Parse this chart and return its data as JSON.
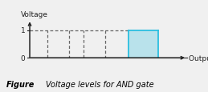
{
  "title_y": "Voltage",
  "title_x": "Output Y",
  "caption_bold": "Figure",
  "caption_italic": "     Voltage levels for AND gate",
  "bg_color": "#f0f0f0",
  "plot_bg": "#ffffff",
  "dashed_pulses": [
    {
      "x_start": 1.0,
      "x_end": 2.2,
      "y": 1
    },
    {
      "x_start": 3.0,
      "x_end": 4.2,
      "y": 1
    }
  ],
  "solid_pulse": {
    "x_start": 5.5,
    "x_end": 7.2,
    "y": 1
  },
  "solid_color": "#2bbfe0",
  "dashed_color": "#666666",
  "dashed_top_x_end": 5.5,
  "axis_color": "#222222",
  "x_max": 8.8,
  "y_max": 1.4,
  "xlim": [
    -0.5,
    9.5
  ],
  "ylim": [
    -0.3,
    1.9
  ]
}
